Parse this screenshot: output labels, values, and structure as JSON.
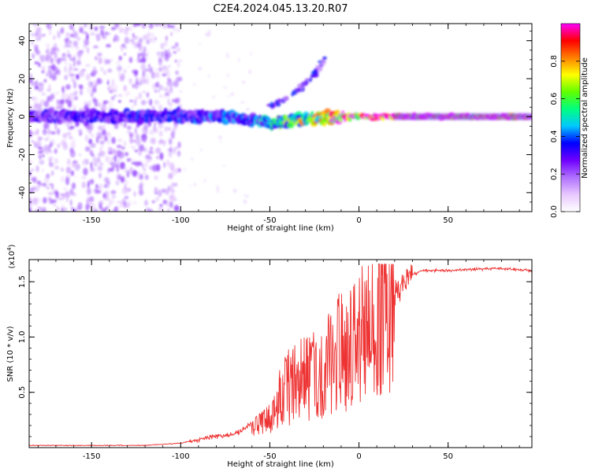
{
  "title": "C2E4.2024.045.13.20.R07",
  "chart_data": [
    {
      "type": "heatmap",
      "xlabel": "Height of straight line (km)",
      "ylabel": "Frequency (Hz)",
      "xlim": [
        -185,
        97
      ],
      "ylim": [
        -50,
        49
      ],
      "xticks": [
        -150,
        -100,
        -50,
        0,
        50
      ],
      "xtick_labels": [
        "-150",
        "-100",
        "-50",
        "0",
        "50"
      ],
      "yticks": [
        -40,
        -20,
        0,
        20,
        40
      ],
      "ytick_labels": [
        "-40",
        "-20",
        "0",
        "20",
        "40"
      ],
      "colorbar": {
        "label": "Normalized spectral amplitude",
        "range": [
          0,
          1
        ],
        "ticks": [
          0.0,
          0.2,
          0.4,
          0.6,
          0.8
        ],
        "tick_labels": [
          "0.0",
          "0.2",
          "0.4",
          "0.6",
          "0.8"
        ],
        "colormap": [
          "#ffffff",
          "#e8c8ff",
          "#b070ff",
          "#7000ff",
          "#0000ff",
          "#00c8ff",
          "#00ff80",
          "#60ff00",
          "#ffff00",
          "#ff8000",
          "#ff0000",
          "#ff00ff"
        ]
      },
      "features": [
        {
          "name": "noise scatter",
          "x_range": [
            -185,
            -100
          ],
          "y_range": [
            -50,
            49
          ],
          "level": 0.15
        },
        {
          "name": "main band",
          "x_range": [
            -185,
            97
          ],
          "y_center": 0,
          "level_profile": [
            [
              -185,
              0.25
            ],
            [
              -100,
              0.3
            ],
            [
              -60,
              0.35
            ],
            [
              -20,
              0.7
            ],
            [
              0,
              0.85
            ],
            [
              20,
              0.95
            ],
            [
              97,
              0.95
            ]
          ]
        },
        {
          "name": "diagonal branch",
          "points": [
            [
              -50,
              5
            ],
            [
              -35,
              13
            ],
            [
              -25,
              22
            ],
            [
              -20,
              30
            ]
          ],
          "level": 0.2
        }
      ],
      "grid": false
    },
    {
      "type": "line",
      "xlabel": "Height of straight line (km)",
      "ylabel": "SNR (10 * v/v)",
      "y_multiplier": "(x10",
      "y_multiplier_exp": "4",
      "y_multiplier_close": ")",
      "xlim": [
        -185,
        97
      ],
      "ylim": [
        0,
        1.7
      ],
      "xticks": [
        -150,
        -100,
        -50,
        0,
        50
      ],
      "xtick_labels": [
        "-150",
        "-100",
        "-50",
        "0",
        "50"
      ],
      "yticks": [
        0.5,
        1.0,
        1.5
      ],
      "ytick_labels": [
        "0.5",
        "1.0",
        "1.5"
      ],
      "color": "#ee3333",
      "series_envelope": [
        [
          -185,
          0.02
        ],
        [
          -120,
          0.02
        ],
        [
          -100,
          0.04
        ],
        [
          -85,
          0.09
        ],
        [
          -70,
          0.12
        ],
        [
          -60,
          0.22
        ],
        [
          -50,
          0.35
        ],
        [
          -45,
          0.5
        ],
        [
          -40,
          0.55
        ],
        [
          -30,
          0.65
        ],
        [
          -20,
          0.7
        ],
        [
          -10,
          0.9
        ],
        [
          -5,
          0.9
        ],
        [
          0,
          1.0
        ],
        [
          8,
          1.15
        ],
        [
          12,
          1.3
        ],
        [
          18,
          1.35
        ],
        [
          22,
          1.45
        ],
        [
          28,
          1.55
        ],
        [
          35,
          1.6
        ],
        [
          45,
          1.6
        ],
        [
          60,
          1.61
        ],
        [
          80,
          1.62
        ],
        [
          97,
          1.6
        ]
      ],
      "grid": false
    }
  ]
}
